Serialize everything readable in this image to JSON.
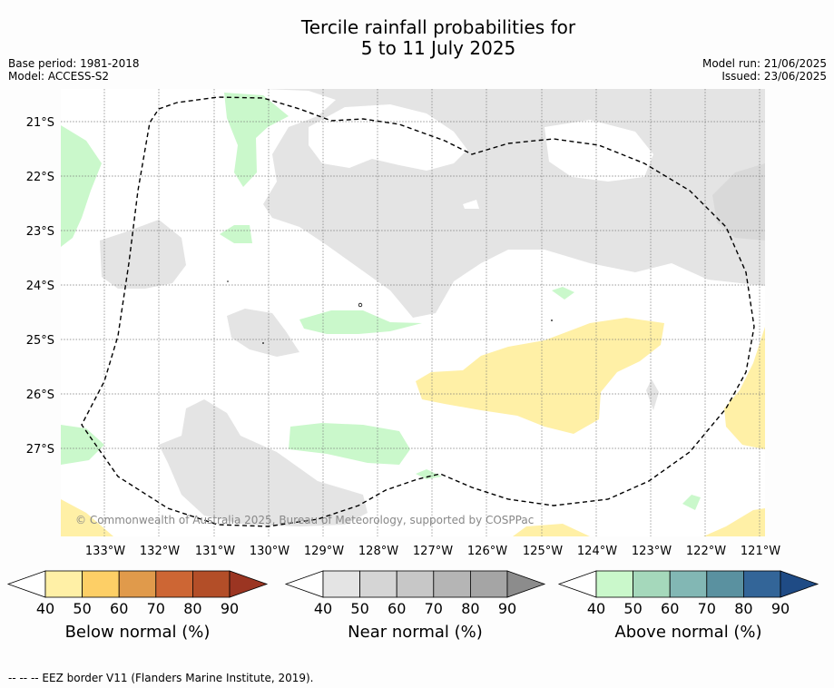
{
  "title_line1": "Tercile rainfall probabilities for",
  "title_line2": "5 to 11 July 2025",
  "base_period": "Base period: 1981-2018",
  "model": "Model: ACCESS-S2",
  "model_run": "Model run: 21/06/2025",
  "issued": "Issued: 23/06/2025",
  "copyright": "© Commonwealth of Australia 2025, Bureau of Meteorology, supported by COSPPac",
  "footer": "--  --  -- EEZ border V11 (Flanders Marine Institute, 2019).",
  "lat_labels": [
    "21°S",
    "22°S",
    "23°S",
    "24°S",
    "25°S",
    "26°S",
    "27°S"
  ],
  "lon_labels": [
    "133°W",
    "132°W",
    "131°W",
    "130°W",
    "129°W",
    "128°W",
    "127°W",
    "126°W",
    "125°W",
    "124°W",
    "123°W",
    "122°W",
    "121°W"
  ],
  "colorbars": [
    {
      "title": "Below normal (%)",
      "ticks": [
        "40",
        "50",
        "60",
        "70",
        "80",
        "90"
      ],
      "colors": [
        "#fff0a6",
        "#fdcf66",
        "#e09a4b",
        "#cd6634",
        "#b34e28",
        "#9b3522"
      ]
    },
    {
      "title": "Near normal (%)",
      "ticks": [
        "40",
        "50",
        "60",
        "70",
        "80",
        "90"
      ],
      "colors": [
        "#e4e4e4",
        "#d5d5d5",
        "#c7c7c7",
        "#b5b5b5",
        "#a5a5a5",
        "#8c8c8c"
      ]
    },
    {
      "title": "Above normal (%)",
      "ticks": [
        "40",
        "50",
        "60",
        "70",
        "80",
        "90"
      ],
      "colors": [
        "#caf8cb",
        "#a5d8bb",
        "#82b7b4",
        "#5a91a0",
        "#336598",
        "#1f4b85"
      ]
    }
  ],
  "legend_colors": {
    "below": "#fff0a6",
    "near": "#e4e4e4",
    "near_dark": "#d9d9d9",
    "above": "#caf8cb"
  }
}
